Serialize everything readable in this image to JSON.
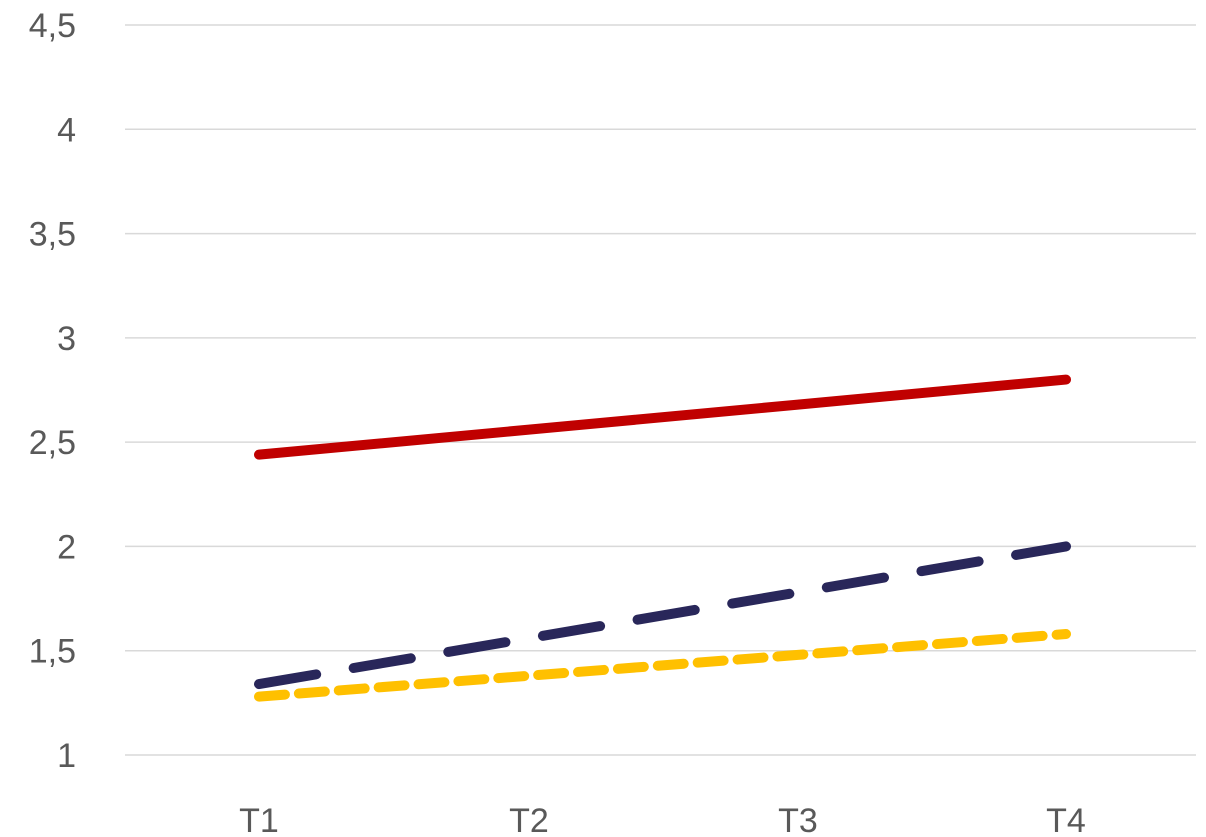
{
  "chart_data": {
    "type": "line",
    "title": "",
    "xlabel": "",
    "ylabel": "",
    "categories": [
      "T1",
      "T2",
      "T3",
      "T4"
    ],
    "ylim": [
      1,
      4.5
    ],
    "yticks": [
      "1",
      "1,5",
      "2",
      "2,5",
      "3",
      "3,5",
      "4",
      "4,5"
    ],
    "ytick_values": [
      1,
      1.5,
      2,
      2.5,
      3,
      3.5,
      4,
      4.5
    ],
    "grid": true,
    "legend": "none",
    "series": [
      {
        "values": [
          2.44,
          2.56,
          2.68,
          2.8
        ],
        "color": "#c00000",
        "line_style": "solid"
      },
      {
        "values": [
          1.34,
          1.56,
          1.78,
          2.0
        ],
        "color": "#29275a",
        "line_style": "long-dash"
      },
      {
        "values": [
          1.28,
          1.38,
          1.48,
          1.58
        ],
        "color": "#ffc000",
        "line_style": "short-dash"
      }
    ]
  }
}
